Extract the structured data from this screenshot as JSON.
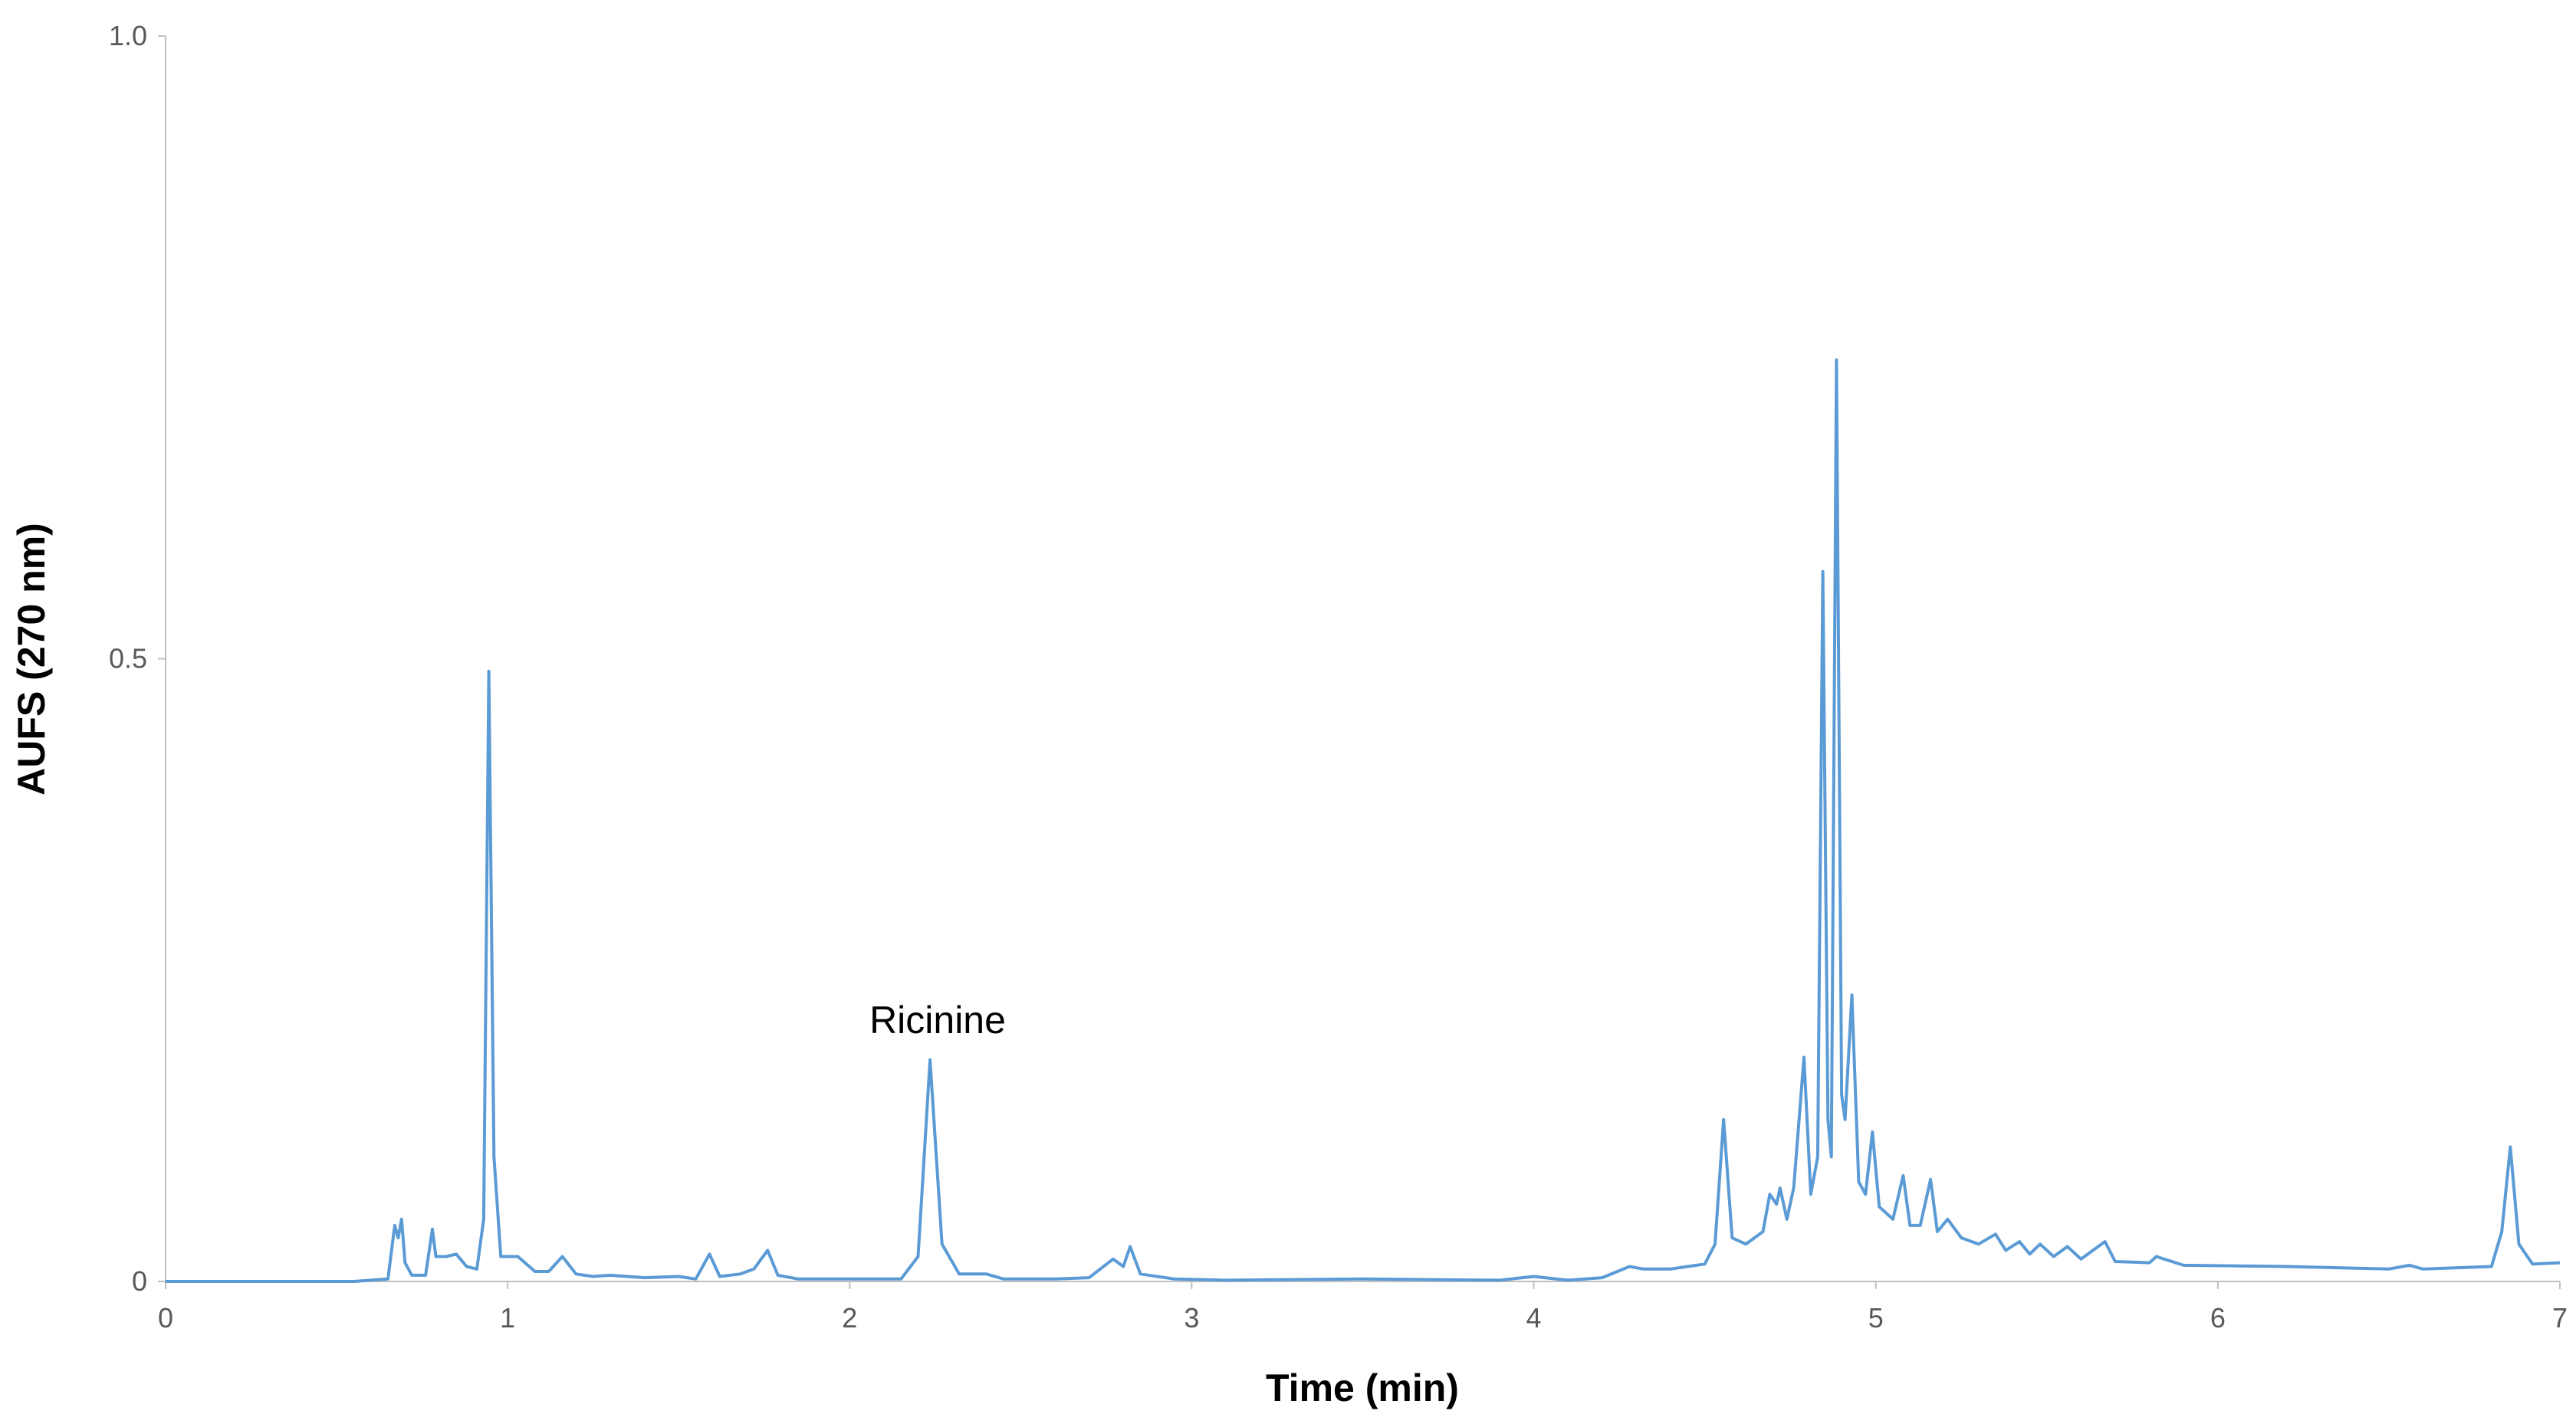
{
  "chart_data": {
    "type": "line",
    "x_label": "Time (min)",
    "y_label": "AUFS (270 nm)",
    "annotation": "Ricinine",
    "color": "#5b9bd5",
    "xlim": [
      0,
      7
    ],
    "xticks": [
      0,
      1,
      2,
      3,
      4,
      5,
      6,
      7
    ],
    "ylim": [
      0,
      1
    ],
    "yticks": [
      0,
      0.5,
      {
        "value": 1,
        "label": "1.0"
      }
    ],
    "grid": false,
    "x": [
      0,
      0.46,
      0.55,
      0.65,
      0.67,
      0.68,
      0.69,
      0.7,
      0.72,
      0.76,
      0.78,
      0.79,
      0.82,
      0.85,
      0.88,
      0.91,
      0.93,
      0.945,
      0.96,
      0.98,
      1.03,
      1.08,
      1.12,
      1.16,
      1.2,
      1.25,
      1.3,
      1.4,
      1.5,
      1.55,
      1.59,
      1.62,
      1.68,
      1.72,
      1.76,
      1.79,
      1.85,
      2.0,
      2.15,
      2.2,
      2.235,
      2.27,
      2.32,
      2.4,
      2.45,
      2.6,
      2.7,
      2.77,
      2.8,
      2.82,
      2.85,
      2.95,
      3.1,
      3.5,
      3.9,
      4.0,
      4.1,
      4.2,
      4.28,
      4.32,
      4.4,
      4.45,
      4.5,
      4.53,
      4.555,
      4.58,
      4.62,
      4.67,
      4.69,
      4.71,
      4.72,
      4.74,
      4.76,
      4.79,
      4.81,
      4.83,
      4.845,
      4.86,
      4.87,
      4.885,
      4.9,
      4.91,
      4.93,
      4.95,
      4.97,
      4.99,
      5.01,
      5.05,
      5.08,
      5.1,
      5.13,
      5.16,
      5.18,
      5.21,
      5.25,
      5.3,
      5.35,
      5.38,
      5.42,
      5.45,
      5.48,
      5.52,
      5.56,
      5.6,
      5.67,
      5.7,
      5.8,
      5.82,
      5.9,
      6.2,
      6.5,
      6.56,
      6.6,
      6.8,
      6.83,
      6.855,
      6.88,
      6.92,
      7
    ],
    "values": [
      0,
      0,
      0,
      0.002,
      0.045,
      0.035,
      0.05,
      0.015,
      0.005,
      0.005,
      0.042,
      0.02,
      0.02,
      0.022,
      0.012,
      0.01,
      0.05,
      0.49,
      0.1,
      0.02,
      0.02,
      0.008,
      0.008,
      0.02,
      0.006,
      0.004,
      0.005,
      0.003,
      0.004,
      0.002,
      0.022,
      0.004,
      0.006,
      0.01,
      0.025,
      0.005,
      0.002,
      0.002,
      0.002,
      0.02,
      0.178,
      0.03,
      0.006,
      0.006,
      0.002,
      0.002,
      0.003,
      0.018,
      0.012,
      0.028,
      0.006,
      0.002,
      0.001,
      0.002,
      0.001,
      0.004,
      0.001,
      0.003,
      0.012,
      0.01,
      0.01,
      0.012,
      0.014,
      0.03,
      0.13,
      0.035,
      0.03,
      0.04,
      0.07,
      0.062,
      0.075,
      0.05,
      0.075,
      0.18,
      0.07,
      0.1,
      0.57,
      0.13,
      0.1,
      0.74,
      0.15,
      0.13,
      0.23,
      0.08,
      0.07,
      0.12,
      0.06,
      0.05,
      0.085,
      0.045,
      0.045,
      0.082,
      0.04,
      0.05,
      0.035,
      0.03,
      0.038,
      0.025,
      0.032,
      0.022,
      0.03,
      0.02,
      0.028,
      0.018,
      0.032,
      0.016,
      0.015,
      0.02,
      0.013,
      0.012,
      0.01,
      0.013,
      0.01,
      0.012,
      0.04,
      0.108,
      0.03,
      0.014,
      0.015
    ]
  }
}
